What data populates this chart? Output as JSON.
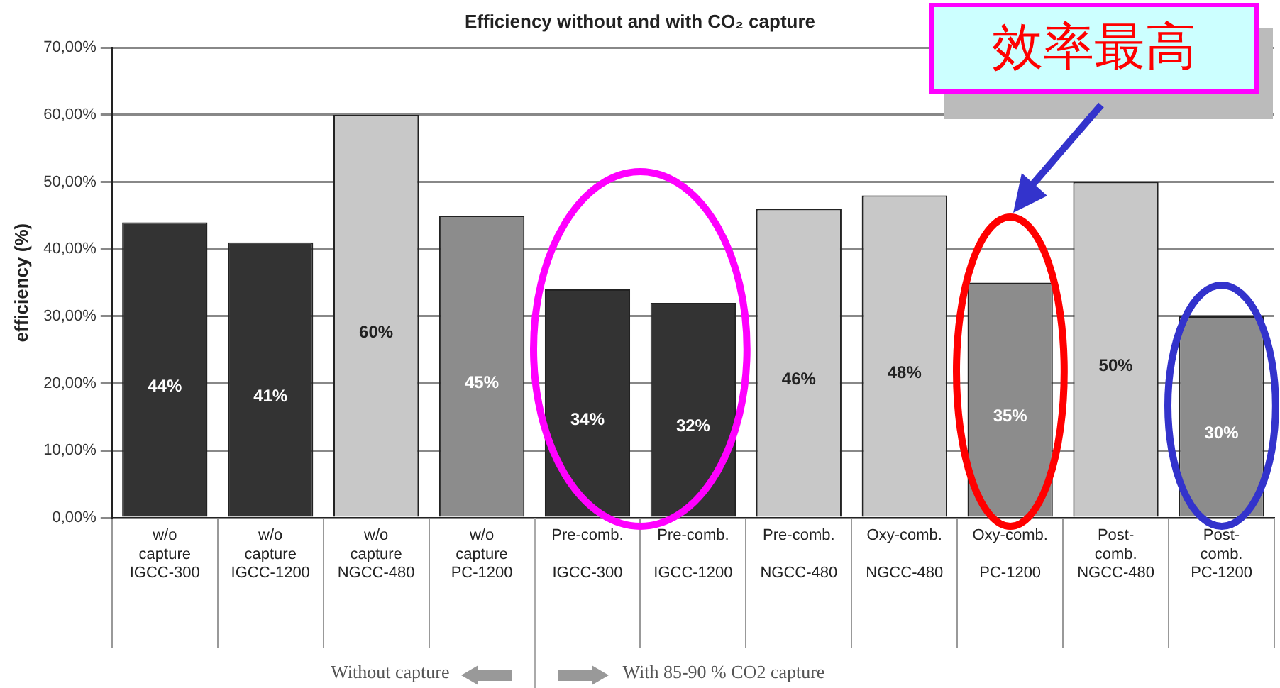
{
  "chart_data": {
    "type": "bar",
    "title": "Efficiency without and with CO₂ capture",
    "ylabel": "efficiency (%)",
    "categories": [
      "w/o\ncapture\nIGCC-300",
      "w/o\ncapture\nIGCC-1200",
      "w/o\ncapture\nNGCC-480",
      "w/o\ncapture\nPC-1200",
      "Pre-comb.\n\nIGCC-300",
      "Pre-comb.\n\nIGCC-1200",
      "Pre-comb.\n\nNGCC-480",
      "Oxy-comb.\n\nNGCC-480",
      "Oxy-comb.\n\nPC-1200",
      "Post-\ncomb.\nNGCC-480",
      "Post-\ncomb.\nPC-1200"
    ],
    "values": [
      44,
      41,
      60,
      45,
      34,
      32,
      46,
      48,
      35,
      50,
      30
    ],
    "value_labels": [
      "44%",
      "41%",
      "60%",
      "45%",
      "34%",
      "32%",
      "46%",
      "48%",
      "35%",
      "50%",
      "30%"
    ],
    "colors": [
      "#333333",
      "#333333",
      "#c8c8c8",
      "#8c8c8c",
      "#333333",
      "#333333",
      "#c8c8c8",
      "#c8c8c8",
      "#8c8c8c",
      "#c8c8c8",
      "#8c8c8c"
    ],
    "ylim": [
      0,
      70
    ],
    "yticks": [
      {
        "value": 0,
        "label": "0,00%"
      },
      {
        "value": 10,
        "label": "10,00%"
      },
      {
        "value": 20,
        "label": "20,00%"
      },
      {
        "value": 30,
        "label": "30,00%"
      },
      {
        "value": 40,
        "label": "40,00%"
      },
      {
        "value": 50,
        "label": "50,00%"
      },
      {
        "value": 60,
        "label": "60,00%"
      },
      {
        "value": 70,
        "label": "70,00%"
      }
    ],
    "grid": "y",
    "legend": false,
    "annotations": [
      "效率最高",
      "Without capture",
      "With 85-90 % CO2 capture"
    ]
  }
}
